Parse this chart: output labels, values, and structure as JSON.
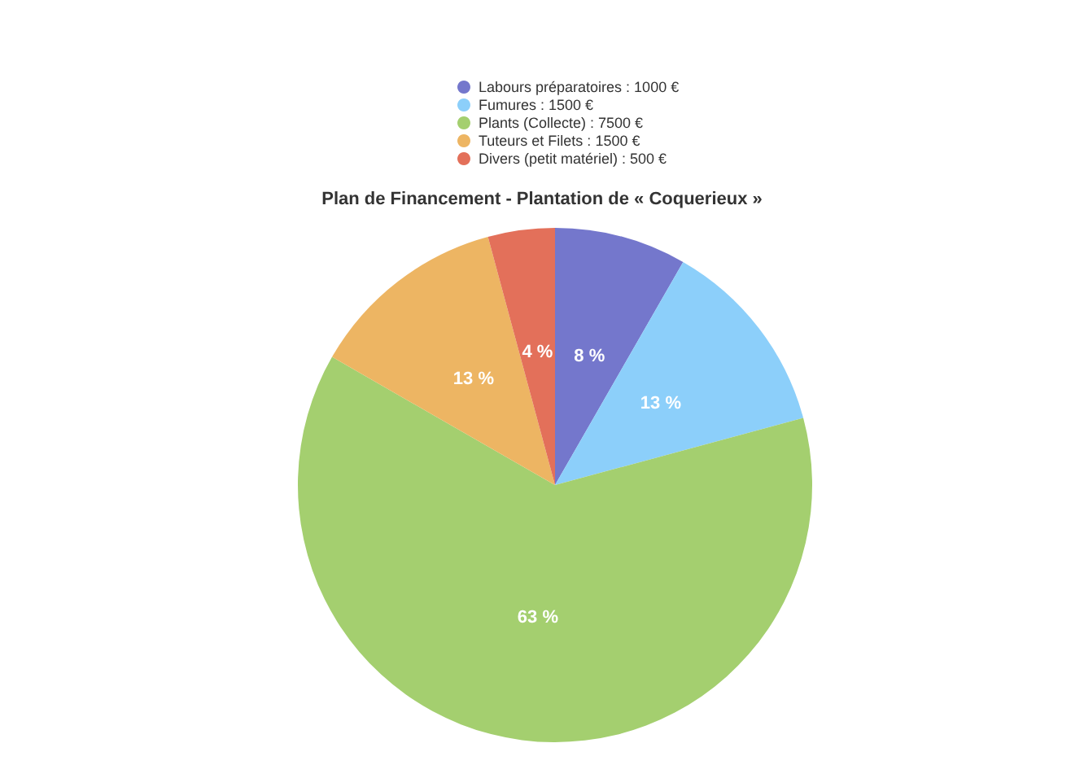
{
  "chart_data": {
    "type": "pie",
    "title": "Plan de Financement - Plantation de « Coquerieux »",
    "categories": [
      "Labours préparatoires : 1000 €",
      "Fumures : 1500 €",
      "Plants (Collecte) : 7500 €",
      "Tuteurs et Filets : 1500 €",
      "Divers (petit matériel) : 500 €"
    ],
    "values": [
      8.3,
      12.5,
      62.5,
      12.5,
      4.2
    ],
    "value_labels": [
      "8 %",
      "13 %",
      "63 %",
      "13 %",
      "4 %"
    ],
    "colors": [
      "#7477cc",
      "#8ccffa",
      "#a4cf6f",
      "#edb563",
      "#e3705a"
    ],
    "legend": "top"
  }
}
